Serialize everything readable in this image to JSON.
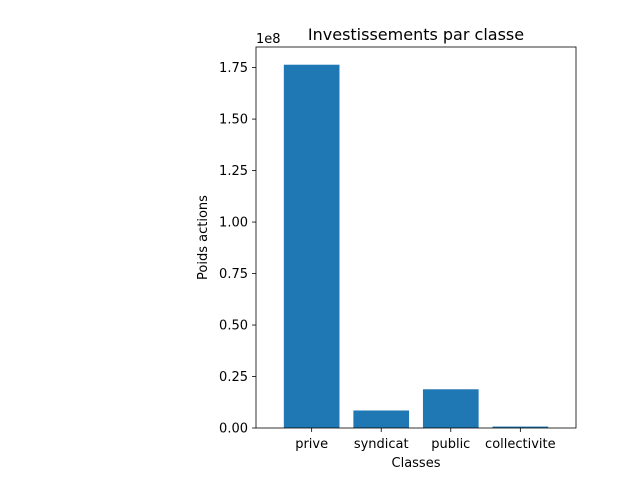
{
  "chart_data": {
    "type": "bar",
    "title": "Investissements par classe",
    "xlabel": "Classes",
    "ylabel": "Poids actions",
    "offset_label": "1e8",
    "categories": [
      "prive",
      "syndicat",
      "public",
      "collectivite"
    ],
    "values": [
      176400000,
      8500000,
      18800000,
      700000
    ],
    "ylim": [
      0,
      185000000
    ],
    "yticks": [
      0,
      25000000,
      50000000,
      75000000,
      100000000,
      125000000,
      150000000,
      175000000
    ],
    "ytick_labels": [
      "0.00",
      "0.25",
      "0.50",
      "0.75",
      "1.00",
      "1.25",
      "1.50",
      "1.75"
    ],
    "grid": false,
    "bar_color": "#1f77b4"
  }
}
